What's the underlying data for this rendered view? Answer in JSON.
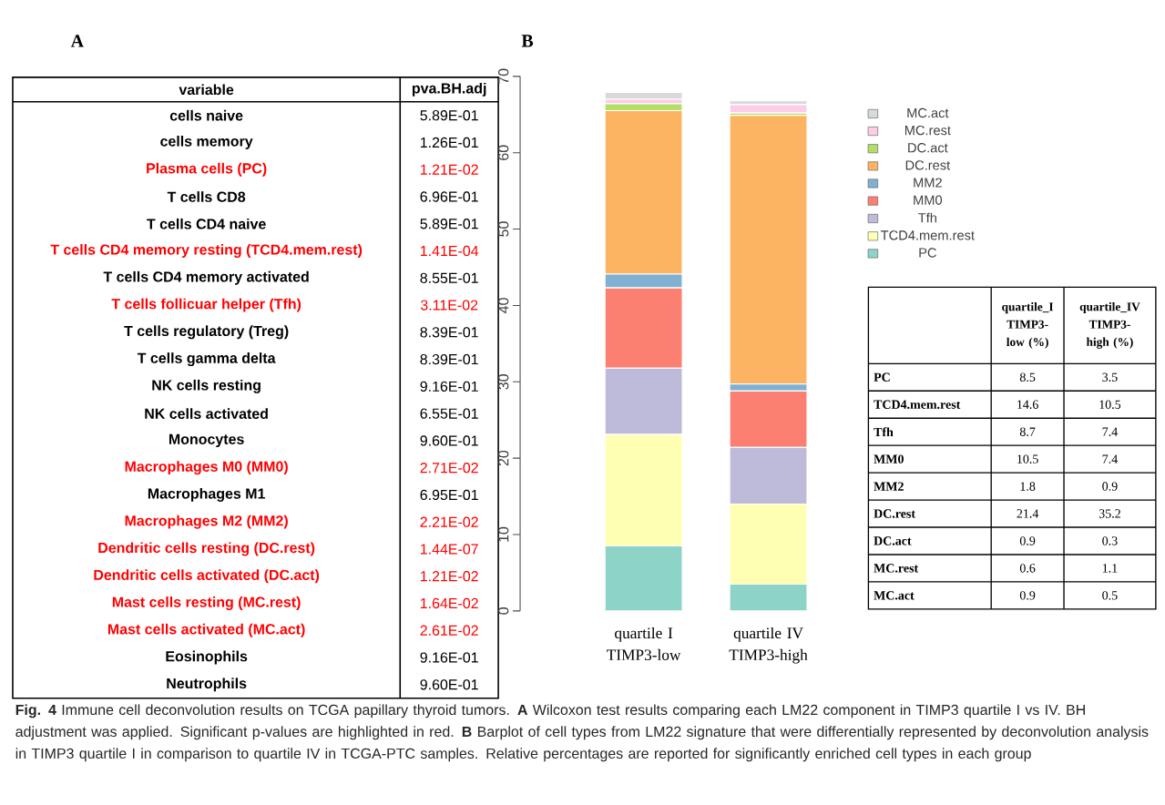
{
  "chart_data": [
    {
      "type": "other",
      "title": "A",
      "annotations": [
        "variable",
        "pva.BH.adj"
      ],
      "categories": [
        "cells naive",
        "cells memory",
        "Plasma cells (PC)",
        "T cells CD8",
        "T cells CD4 naive",
        "T cells CD4 memory resting (TCD4.mem.rest)",
        "T cells CD4 memory activated",
        "T cells follicuar helper (Tfh)",
        "T cells regulatory (Treg)",
        "T cells gamma delta",
        "NK cells resting",
        "NK cells activated",
        "Monocytes",
        "Macrophages M0 (MM0)",
        "Macrophages M1",
        "Macrophages M2 (MM2)",
        "Dendritic cells resting (DC.rest)",
        "Dendritic cells activated (DC.act)",
        "Mast cells resting (MC.rest)",
        "Mast cells activated (MC.act)",
        "Eosinophils",
        "Neutrophils"
      ],
      "value_labels": [
        "5.89E-01",
        "1.26E-01",
        "1.21E-02",
        "6.96E-01",
        "5.89E-01",
        "1.41E-04",
        "8.55E-01",
        "3.11E-02",
        "8.39E-01",
        "8.39E-01",
        "9.16E-01",
        "6.55E-01",
        "9.60E-01",
        "2.71E-02",
        "6.95E-01",
        "2.21E-02",
        "1.44E-07",
        "1.21E-02",
        "1.64E-02",
        "2.61E-02",
        "9.16E-01",
        "9.60E-01"
      ],
      "colors": [
        "#000000",
        "#000000",
        "#ff0000",
        "#000000",
        "#000000",
        "#ff0000",
        "#000000",
        "#ff0000",
        "#000000",
        "#000000",
        "#000000",
        "#000000",
        "#000000",
        "#ff0000",
        "#000000",
        "#ff0000",
        "#ff0000",
        "#ff0000",
        "#ff0000",
        "#ff0000",
        "#000000",
        "#000000"
      ]
    },
    {
      "type": "bar",
      "title": "B",
      "stacked": true,
      "legend": "right",
      "categories": [
        "quartile I TIMP3-low",
        "quartile IV TIMP3-high"
      ],
      "ylim": [
        0,
        70
      ],
      "yticks": [
        0,
        10,
        20,
        30,
        40,
        50,
        60,
        70
      ],
      "series": [
        {
          "name": "PC",
          "color": "#8dd3c7",
          "values": [
            8.5,
            3.5
          ]
        },
        {
          "name": "TCD4.mem.rest",
          "color": "#ffffb3",
          "values": [
            14.6,
            10.5
          ]
        },
        {
          "name": "Tfh",
          "color": "#bebada",
          "values": [
            8.7,
            7.4
          ]
        },
        {
          "name": "MM0",
          "color": "#fb8072",
          "values": [
            10.5,
            7.4
          ]
        },
        {
          "name": "MM2",
          "color": "#80b1d3",
          "values": [
            1.8,
            0.9
          ]
        },
        {
          "name": "DC.rest",
          "color": "#fdb462",
          "values": [
            21.4,
            35.2
          ]
        },
        {
          "name": "DC.act",
          "color": "#b3de69",
          "values": [
            0.9,
            0.3
          ]
        },
        {
          "name": "MC.rest",
          "color": "#fccde5",
          "values": [
            0.6,
            1.1
          ]
        },
        {
          "name": "MC.act",
          "color": "#d9d9d9",
          "values": [
            0.9,
            0.5
          ]
        }
      ],
      "annotations": [
        "**Fig. 4** Immune cell deconvolution results on TCGA papillary thyroid tumors. **A** Wilcoxon test results comparing each LM22 component in TIMP3 quartile I vs IV. BH adjustment was applied. Significant p-values are highlighted in red. **B** Barplot of cell types from LM22 signature that were differentially represented by deconvolution analysis in TIMP3 quartile I in comparison to quartile IV in TCGA-PTC samples. Relative percentages are reported for significantly enriched cell types in each group"
      ]
    },
    {
      "type": "other",
      "data_labels": true,
      "categories": [
        "PC",
        "TCD4.mem.rest",
        "Tfh",
        "MM0",
        "MM2",
        "DC.rest",
        "DC.act",
        "MC.rest",
        "MC.act"
      ],
      "series": [
        {
          "name": "quartile_I TIMP3-low (%)",
          "values": [
            8.5,
            14.6,
            8.7,
            10.5,
            1.8,
            21.4,
            0.9,
            0.6,
            0.9
          ]
        },
        {
          "name": "quartile_IV TIMP3-high (%)",
          "values": [
            3.5,
            10.5,
            7.4,
            7.4,
            0.9,
            35.2,
            0.3,
            1.1,
            0.5
          ]
        }
      ]
    }
  ]
}
